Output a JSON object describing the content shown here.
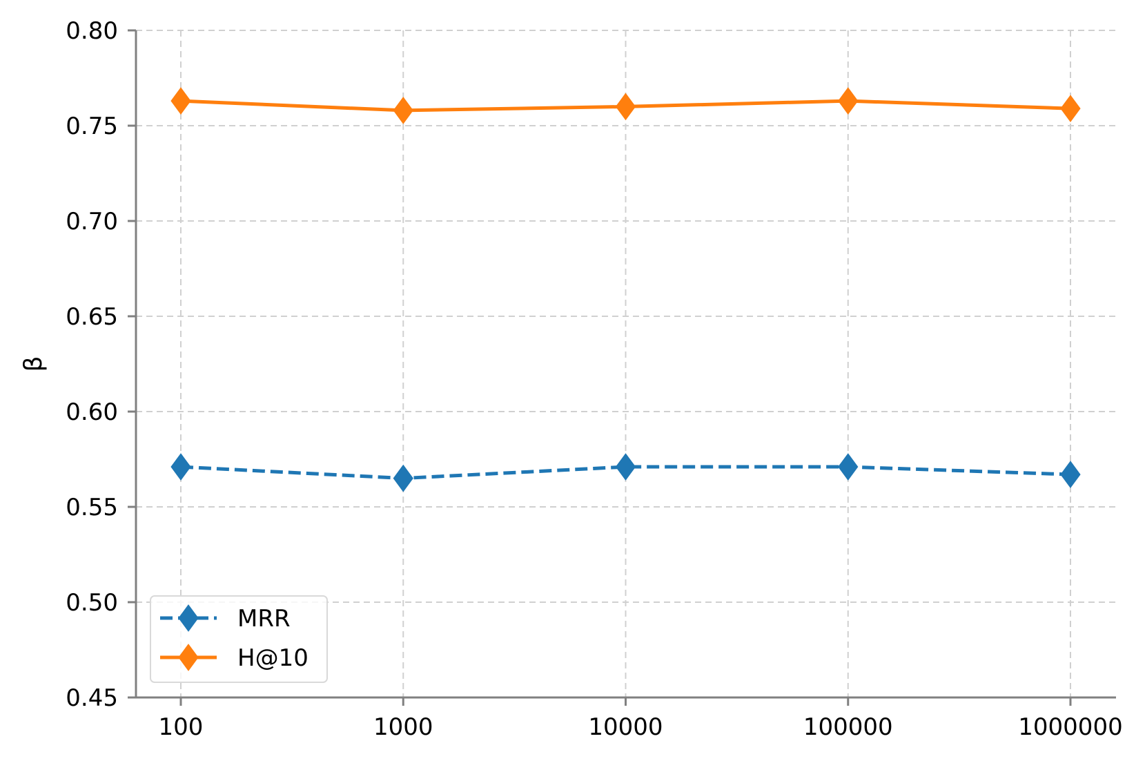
{
  "chart_data": {
    "type": "line",
    "title": "",
    "xlabel": "",
    "ylabel": "β",
    "x_categories": [
      "100",
      "1000",
      "10000",
      "100000",
      "1000000"
    ],
    "ylim": [
      0.45,
      0.8
    ],
    "yticks": [
      "0.45",
      "0.50",
      "0.55",
      "0.60",
      "0.65",
      "0.70",
      "0.75",
      "0.80"
    ],
    "grid": true,
    "legend_position": "lower-left",
    "series": [
      {
        "name": "MRR",
        "values": [
          0.571,
          0.565,
          0.571,
          0.571,
          0.567
        ],
        "color": "#1f77b4",
        "line_style": "dashed",
        "marker": "thin-diamond"
      },
      {
        "name": "H@10",
        "values": [
          0.763,
          0.758,
          0.76,
          0.763,
          0.759
        ],
        "color": "#ff7f0e",
        "line_style": "solid",
        "marker": "thin-diamond"
      }
    ]
  }
}
